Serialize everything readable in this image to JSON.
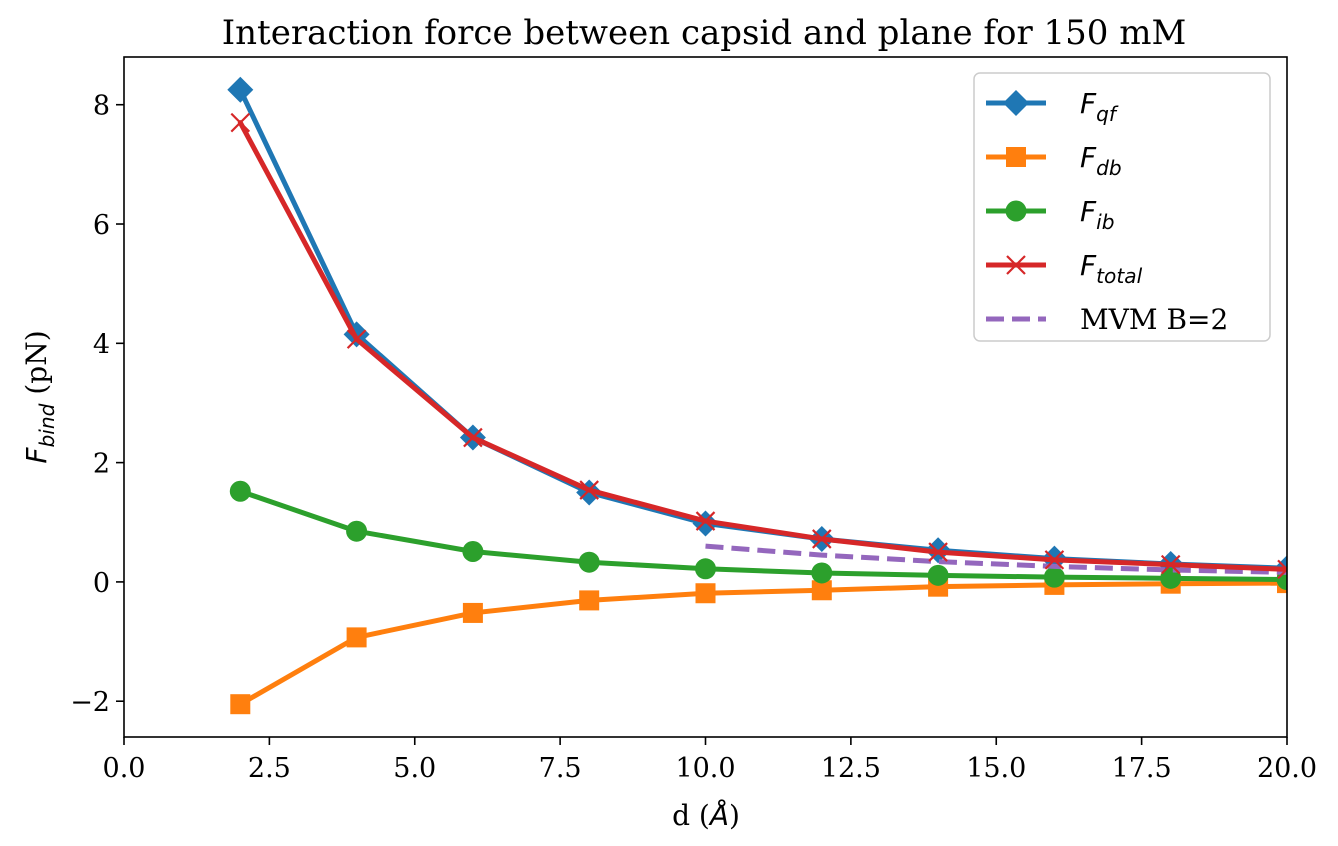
{
  "chart_data": {
    "type": "line",
    "title": "Interaction force between capsid and plane for 150 mM",
    "xlabel": "d (Å)",
    "ylabel": "F_bind (pN)",
    "xlim": [
      0,
      20
    ],
    "ylim": [
      -2.6,
      8.8
    ],
    "xticks": [
      "0.0",
      "2.5",
      "5.0",
      "7.5",
      "10.0",
      "12.5",
      "15.0",
      "17.5",
      "20.0"
    ],
    "yticks": [
      "−2",
      "0",
      "2",
      "4",
      "6",
      "8"
    ],
    "grid": false,
    "legend_position": "top-right",
    "x": [
      2,
      4,
      6,
      8,
      10,
      12,
      14,
      16,
      18,
      20
    ],
    "series": [
      {
        "name": "F_qf",
        "color": "#1f77b4",
        "marker": "diamond",
        "values": [
          8.25,
          4.15,
          2.42,
          1.5,
          0.98,
          0.72,
          0.53,
          0.39,
          0.3,
          0.23
        ]
      },
      {
        "name": "F_db",
        "color": "#ff7f0e",
        "marker": "square",
        "values": [
          -2.05,
          -0.93,
          -0.52,
          -0.31,
          -0.19,
          -0.14,
          -0.08,
          -0.05,
          -0.03,
          -0.02
        ]
      },
      {
        "name": "F_ib",
        "color": "#2ca02c",
        "marker": "circle",
        "values": [
          1.52,
          0.85,
          0.51,
          0.33,
          0.22,
          0.15,
          0.11,
          0.08,
          0.06,
          0.04
        ]
      },
      {
        "name": "F_total",
        "color": "#d62728",
        "marker": "x",
        "values": [
          7.7,
          4.07,
          2.42,
          1.54,
          1.02,
          0.72,
          0.5,
          0.37,
          0.29,
          0.21
        ]
      },
      {
        "name": "MVM B=2",
        "color": "#9467bd",
        "marker": "none",
        "dashed": true,
        "x": [
          10,
          12,
          14,
          16,
          18,
          20
        ],
        "values": [
          0.6,
          0.45,
          0.34,
          0.26,
          0.2,
          0.16
        ]
      }
    ]
  }
}
